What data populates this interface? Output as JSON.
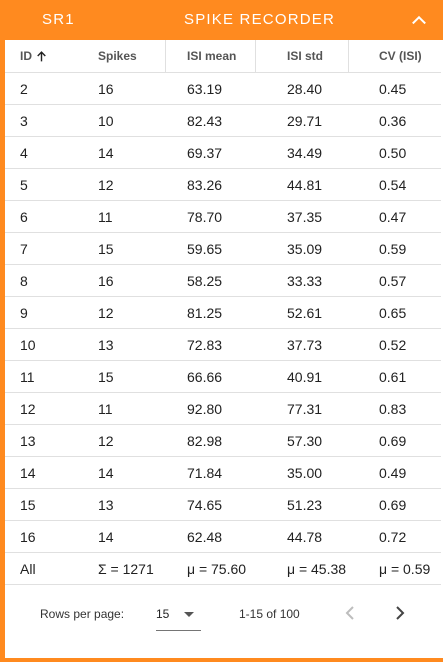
{
  "header": {
    "recorder_id": "SR1",
    "title": "SPIKE RECORDER"
  },
  "table": {
    "columns": [
      "ID",
      "Spikes",
      "ISI mean",
      "ISI std",
      "CV (ISI)"
    ],
    "sort_column": "ID",
    "sort_direction": "ascending",
    "rows": [
      [
        "2",
        "16",
        "63.19",
        "28.40",
        "0.45"
      ],
      [
        "3",
        "10",
        "82.43",
        "29.71",
        "0.36"
      ],
      [
        "4",
        "14",
        "69.37",
        "34.49",
        "0.50"
      ],
      [
        "5",
        "12",
        "83.26",
        "44.81",
        "0.54"
      ],
      [
        "6",
        "11",
        "78.70",
        "37.35",
        "0.47"
      ],
      [
        "7",
        "15",
        "59.65",
        "35.09",
        "0.59"
      ],
      [
        "8",
        "16",
        "58.25",
        "33.33",
        "0.57"
      ],
      [
        "9",
        "12",
        "81.25",
        "52.61",
        "0.65"
      ],
      [
        "10",
        "13",
        "72.83",
        "37.73",
        "0.52"
      ],
      [
        "11",
        "15",
        "66.66",
        "40.91",
        "0.61"
      ],
      [
        "12",
        "11",
        "92.80",
        "77.31",
        "0.83"
      ],
      [
        "13",
        "12",
        "82.98",
        "57.30",
        "0.69"
      ],
      [
        "14",
        "14",
        "71.84",
        "35.00",
        "0.49"
      ],
      [
        "15",
        "13",
        "74.65",
        "51.23",
        "0.69"
      ],
      [
        "16",
        "14",
        "62.48",
        "44.78",
        "0.72"
      ]
    ],
    "summary": [
      "All",
      "Σ = 1271",
      "μ = 75.60",
      "μ = 45.38",
      "μ = 0.59"
    ]
  },
  "pagination": {
    "rows_per_page_label": "Rows per page:",
    "rows_per_page_value": "15",
    "range_label": "1-15 of 100"
  },
  "colors": {
    "accent": "#ff8a1f",
    "divider": "#e0e0e0",
    "text": "#212121",
    "disabled": "#bdbdbd"
  },
  "icons": {
    "collapse": "chevron-up-icon",
    "sort": "arrow-up-icon",
    "select": "caret-down-icon",
    "prev": "chevron-left-icon",
    "next": "chevron-right-icon"
  }
}
